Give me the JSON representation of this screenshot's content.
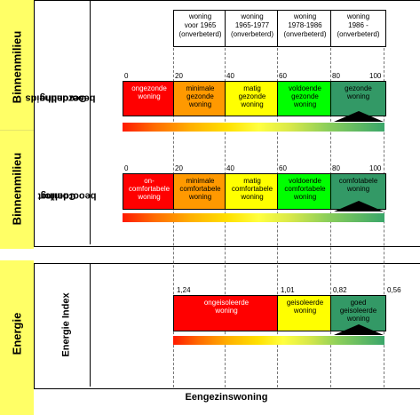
{
  "side_labels": {
    "binnenmilieu_1": "Binnenmilieu",
    "binnenmilieu_2": "Binnenmilieu",
    "energie": "Energie"
  },
  "row_labels": {
    "gezondheid_line1": "Gezondheids",
    "gezondheid_line2": "beoordeling",
    "comfort_line1": "Comfort",
    "comfort_line2": "beoordeling",
    "energie_index": "Energie Index"
  },
  "header": [
    {
      "line1": "woning",
      "line2": "voor 1965",
      "line3": "(onverbeterd)"
    },
    {
      "line1": "woning",
      "line2": "1965-1977",
      "line3": "(onverbeterd)"
    },
    {
      "line1": "woning",
      "line2": "1978-1986",
      "line3": "(onverbeterd)"
    },
    {
      "line1": "woning",
      "line2": "1986 -",
      "line3": "(onverbeterd)"
    }
  ],
  "gezondheid": {
    "ticks": [
      "0",
      "20",
      "40",
      "60",
      "80",
      "100"
    ],
    "segments": [
      {
        "line1": "ongezonde",
        "line2": "woning",
        "line3": "",
        "color": "#ff0000"
      },
      {
        "line1": "minimale",
        "line2": "gezonde",
        "line3": "woning",
        "color": "#ff9900"
      },
      {
        "line1": "matig",
        "line2": "gezonde",
        "line3": "woning",
        "color": "#ffff00"
      },
      {
        "line1": "voldoende",
        "line2": "gezonde",
        "line3": "woning",
        "color": "#00ff00"
      },
      {
        "line1": "gezonde",
        "line2": "woning",
        "line3": "",
        "color": "#339966"
      }
    ]
  },
  "comfort": {
    "ticks": [
      "0",
      "20",
      "40",
      "60",
      "80",
      "100"
    ],
    "segments": [
      {
        "line1": "on-",
        "line2": "comfortabele",
        "line3": "woning",
        "color": "#ff0000"
      },
      {
        "line1": "minimale",
        "line2": "comfortabele",
        "line3": "woning",
        "color": "#ff9900"
      },
      {
        "line1": "matig",
        "line2": "comfortabele",
        "line3": "woning",
        "color": "#ffff00"
      },
      {
        "line1": "voldoende",
        "line2": "comfortabele",
        "line3": "woning",
        "color": "#00ff00"
      },
      {
        "line1": "comfotabele",
        "line2": "woning",
        "line3": "",
        "color": "#339966"
      }
    ]
  },
  "energie": {
    "ticks": [
      "1,24",
      "1,01",
      "0,82",
      "0,56"
    ],
    "segments": [
      {
        "line1": "ongeisoleerde",
        "line2": "woning",
        "line3": "",
        "color": "#ff0000"
      },
      {
        "line1": "geisoleerde",
        "line2": "woning",
        "line3": "",
        "color": "#ffff00"
      },
      {
        "line1": "goed",
        "line2": "geisoleerde",
        "line3": "woning",
        "color": "#339966"
      }
    ]
  },
  "bottom_label": "Eengezinswoning"
}
